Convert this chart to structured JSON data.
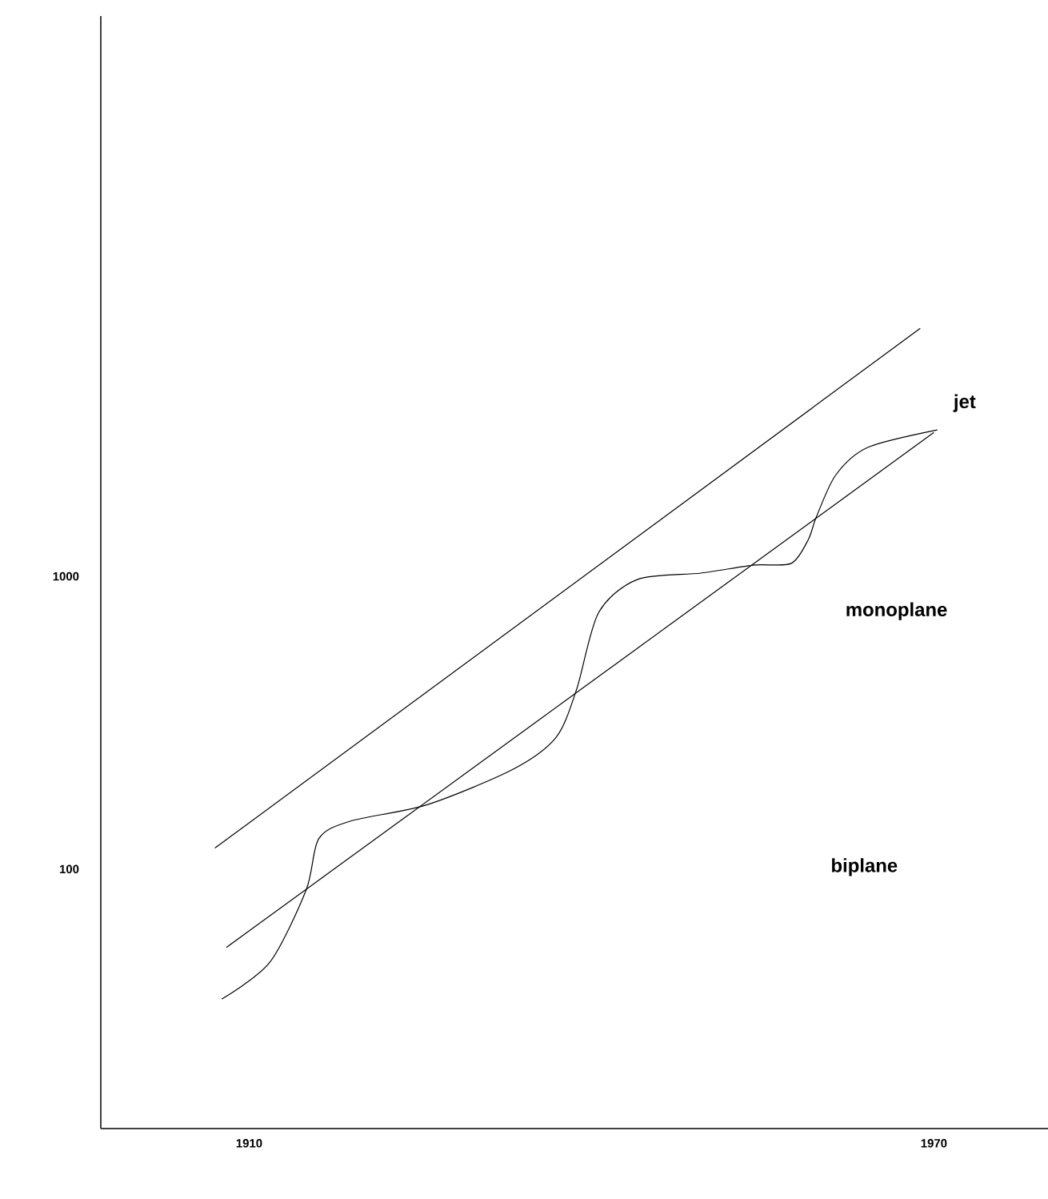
{
  "chart_data": {
    "type": "line",
    "log": "y",
    "xlim": [
      1897,
      1980
    ],
    "ylim": [
      13,
      82000
    ],
    "xticks": [
      1910,
      1970
    ],
    "yticks": [
      100,
      1000
    ],
    "grid": false,
    "marker": "none",
    "line_style": "solid",
    "series": [
      {
        "color": "#000000",
        "x": [
          1907.6,
          1911.8,
          1915.0,
          1916.1,
          1918.9,
          1925.6,
          1933.1,
          1936.9,
          1938.7,
          1940.6,
          1944.0,
          1949.6,
          1954.3,
          1957.5,
          1959.0,
          1959.7,
          1961.4,
          1964.2,
          1970.3
        ],
        "values": [
          36,
          48,
          85,
          127,
          146,
          166,
          219,
          282,
          412,
          749,
          975,
          1026,
          1093,
          1107,
          1337,
          1596,
          2218,
          2755,
          3162
        ]
      },
      {
        "color": "#000000",
        "x": [
          1907.0,
          1968.8
        ],
        "values": [
          118,
          7030
        ]
      },
      {
        "color": "#000000",
        "x": [
          1908.0,
          1970.0
        ],
        "values": [
          54,
          3100
        ]
      }
    ],
    "annotations": [
      "jet",
      "monoplane",
      "biplane"
    ]
  }
}
